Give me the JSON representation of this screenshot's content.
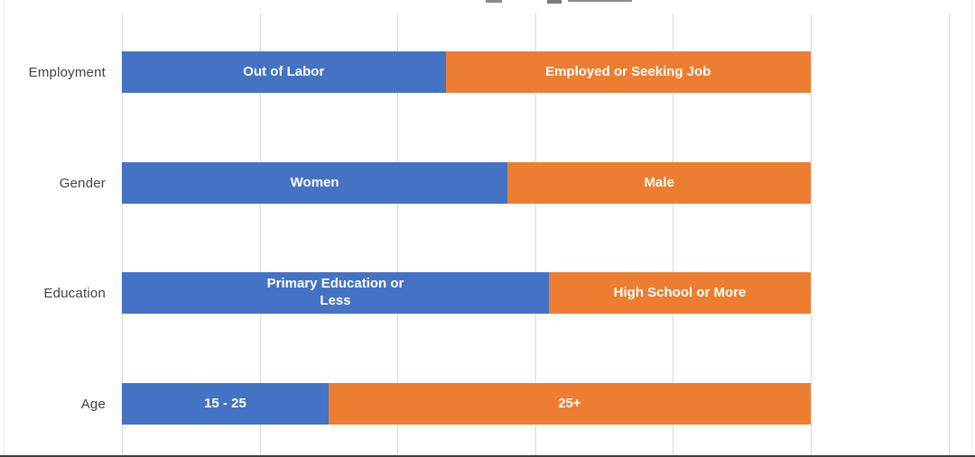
{
  "colors": {
    "segment_blue": "#4472C4",
    "segment_orange": "#ED7D31",
    "gridline": "#D9D9D9",
    "category_label": "#404040",
    "bar_label_text": "#FFFFFF"
  },
  "chart_data": {
    "type": "bar",
    "orientation": "horizontal",
    "stacked": true,
    "title_visible_text": "",
    "legend_position": "none",
    "x_axis": {
      "min": 0,
      "max": 1.2,
      "gridline_interval": 0.2,
      "tick_labels_visible": false
    },
    "categories": [
      "Employment",
      "Gender",
      "Education",
      "Age"
    ],
    "rows": [
      {
        "category": "Employment",
        "segments": [
          {
            "label": "Out of Labor",
            "value": 47,
            "color": "#4472C4"
          },
          {
            "label": "Employed or Seeking Job",
            "value": 53,
            "color": "#ED7D31"
          }
        ]
      },
      {
        "category": "Gender",
        "segments": [
          {
            "label": "Women",
            "value": 56,
            "color": "#4472C4"
          },
          {
            "label": "Male",
            "value": 44,
            "color": "#ED7D31"
          }
        ]
      },
      {
        "category": "Education",
        "segments": [
          {
            "label": "Primary Education or\nLess",
            "value": 62,
            "color": "#4472C4"
          },
          {
            "label": "High School or More",
            "value": 38,
            "color": "#ED7D31"
          }
        ]
      },
      {
        "category": "Age",
        "segments": [
          {
            "label": "15 - 25",
            "value": 30,
            "color": "#4472C4"
          },
          {
            "label": "25+",
            "value": 70,
            "color": "#ED7D31"
          }
        ]
      }
    ]
  }
}
